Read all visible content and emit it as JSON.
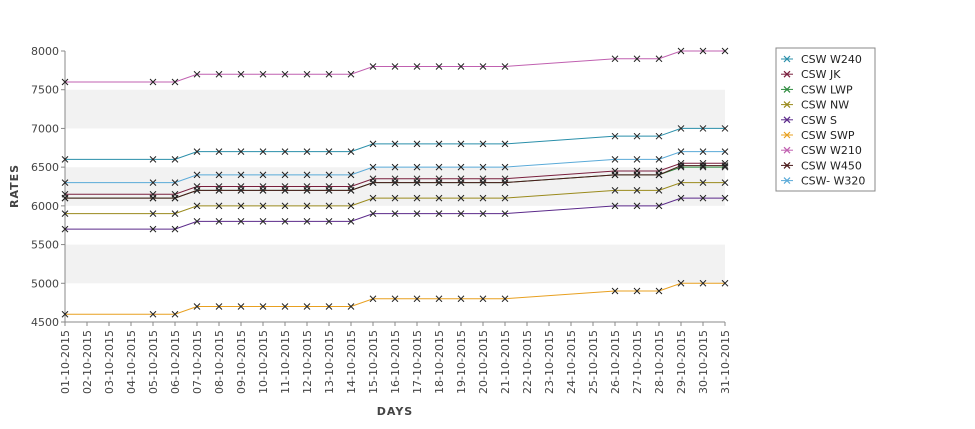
{
  "chart_data": {
    "type": "line",
    "xlabel": "DAYS",
    "ylabel": "RATES",
    "ylim": [
      4500,
      8000
    ],
    "yticks": [
      4500,
      5000,
      5500,
      6000,
      6500,
      7000,
      7500,
      8000
    ],
    "grid": "alternating horizontal bands",
    "legend_position": "right",
    "categories": [
      "01-10-2015",
      "02-10-2015",
      "03-10-2015",
      "04-10-2015",
      "05-10-2015",
      "06-10-2015",
      "07-10-2015",
      "08-10-2015",
      "09-10-2015",
      "10-10-2015",
      "11-10-2015",
      "12-10-2015",
      "13-10-2015",
      "14-10-2015",
      "15-10-2015",
      "16-10-2015",
      "17-10-2015",
      "18-10-2015",
      "19-10-2015",
      "20-10-2015",
      "21-10-2015",
      "22-10-2015",
      "23-10-2015",
      "24-10-2015",
      "25-10-2015",
      "26-10-2015",
      "27-10-2015",
      "28-10-2015",
      "29-10-2015",
      "30-10-2015",
      "31-10-2015"
    ],
    "series": [
      {
        "name": "CSW  W240",
        "color": "#2a8faa",
        "values": [
          6600,
          null,
          null,
          null,
          6600,
          6600,
          6700,
          6700,
          6700,
          6700,
          6700,
          6700,
          6700,
          6700,
          6800,
          6800,
          6800,
          6800,
          6800,
          6800,
          6800,
          null,
          null,
          null,
          null,
          6900,
          6900,
          6900,
          7000,
          7000,
          7000
        ]
      },
      {
        "name": "CSW JK",
        "color": "#7a1f3d",
        "values": [
          6150,
          null,
          null,
          null,
          6150,
          6150,
          6250,
          6250,
          6250,
          6250,
          6250,
          6250,
          6250,
          6250,
          6350,
          6350,
          6350,
          6350,
          6350,
          6350,
          6350,
          null,
          null,
          null,
          null,
          6450,
          6450,
          6450,
          6550,
          6550,
          6550
        ]
      },
      {
        "name": "CSW LWP",
        "color": "#2e8b3e",
        "values": [
          6100,
          null,
          null,
          null,
          6100,
          6100,
          6200,
          6200,
          6200,
          6200,
          6200,
          6200,
          6200,
          6200,
          6300,
          6300,
          6300,
          6300,
          6300,
          6300,
          6300,
          null,
          null,
          null,
          null,
          6400,
          6400,
          6400,
          6500,
          6500,
          6500
        ]
      },
      {
        "name": "CSW NW",
        "color": "#9a8a1c",
        "values": [
          5900,
          null,
          null,
          null,
          5900,
          5900,
          6000,
          6000,
          6000,
          6000,
          6000,
          6000,
          6000,
          6000,
          6100,
          6100,
          6100,
          6100,
          6100,
          6100,
          6100,
          null,
          null,
          null,
          null,
          6200,
          6200,
          6200,
          6300,
          6300,
          6300
        ]
      },
      {
        "name": "CSW S",
        "color": "#5b2a8a",
        "values": [
          5700,
          null,
          null,
          null,
          5700,
          5700,
          5800,
          5800,
          5800,
          5800,
          5800,
          5800,
          5800,
          5800,
          5900,
          5900,
          5900,
          5900,
          5900,
          5900,
          5900,
          null,
          null,
          null,
          null,
          6000,
          6000,
          6000,
          6100,
          6100,
          6100
        ]
      },
      {
        "name": "CSW SWP",
        "color": "#e8a020",
        "values": [
          4600,
          null,
          null,
          null,
          4600,
          4600,
          4700,
          4700,
          4700,
          4700,
          4700,
          4700,
          4700,
          4700,
          4800,
          4800,
          4800,
          4800,
          4800,
          4800,
          4800,
          null,
          null,
          null,
          null,
          4900,
          4900,
          4900,
          5000,
          5000,
          5000
        ]
      },
      {
        "name": "CSW W210",
        "color": "#c060b0",
        "values": [
          7600,
          null,
          null,
          null,
          7600,
          7600,
          7700,
          7700,
          7700,
          7700,
          7700,
          7700,
          7700,
          7700,
          7800,
          7800,
          7800,
          7800,
          7800,
          7800,
          7800,
          null,
          null,
          null,
          null,
          7900,
          7900,
          7900,
          8000,
          8000,
          8000
        ]
      },
      {
        "name": "CSW W450",
        "color": "#4a1a1a",
        "values": [
          6100,
          null,
          null,
          null,
          6100,
          6100,
          6200,
          6200,
          6200,
          6200,
          6200,
          6200,
          6200,
          6200,
          6300,
          6300,
          6300,
          6300,
          6300,
          6300,
          6300,
          null,
          null,
          null,
          null,
          6400,
          6400,
          6400,
          6520,
          6520,
          6520
        ]
      },
      {
        "name": "CSW- W320",
        "color": "#5aaad8",
        "values": [
          6300,
          null,
          null,
          null,
          6300,
          6300,
          6400,
          6400,
          6400,
          6400,
          6400,
          6400,
          6400,
          6400,
          6500,
          6500,
          6500,
          6500,
          6500,
          6500,
          6500,
          null,
          null,
          null,
          null,
          6600,
          6600,
          6600,
          6700,
          6700,
          6700
        ]
      }
    ]
  }
}
